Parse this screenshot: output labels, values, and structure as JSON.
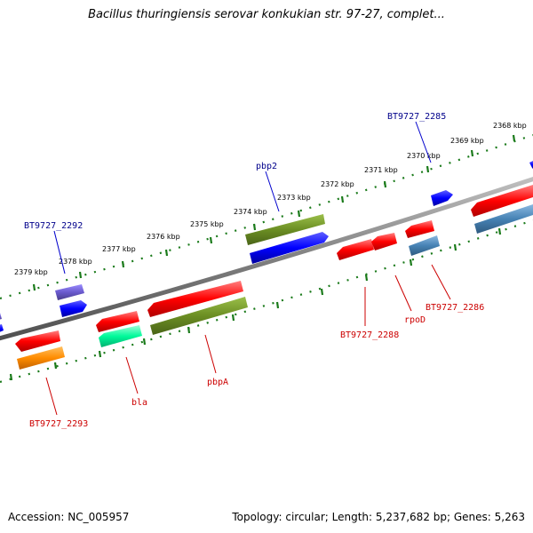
{
  "title": "Bacillus thuringiensis serovar konkukian str. 97-27, complet...",
  "footer": {
    "accession": "Accession: NC_005957",
    "topology": "Topology: circular; Length: 5,237,682 bp; Genes: 5,263"
  },
  "colors": {
    "backbone": "#808080",
    "dots": "#1a7a1a",
    "label_forward": "#00008b",
    "label_reverse": "#cc0000"
  },
  "scale_labels": [
    "2368 kbp",
    "2369 kbp",
    "2370 kbp",
    "2371 kbp",
    "2372 kbp",
    "2373 kbp",
    "2374 kbp",
    "2375 kbp",
    "2376 kbp",
    "2377 kbp",
    "2378 kbp",
    "2379 kbp"
  ],
  "genes_forward": [
    {
      "name": "BT9727_2292",
      "labeled": true,
      "color": "#6a5acd"
    },
    {
      "name": "pbp2",
      "labeled": true,
      "color": "#6b8e23"
    },
    {
      "name": "BT9727_2285",
      "labeled": true,
      "color": "#0000ff"
    }
  ],
  "genes_reverse": [
    {
      "name": "BT9727_2293",
      "labeled": true,
      "color": "#ff8c00"
    },
    {
      "name": "bla",
      "labeled": true,
      "color": "#00fa9a"
    },
    {
      "name": "pbpA",
      "labeled": true,
      "color": "#6b8e23"
    },
    {
      "name": "BT9727_2288",
      "labeled": true,
      "color": "#ff0000"
    },
    {
      "name": "rpoD",
      "labeled": true,
      "color": "#ff0000"
    },
    {
      "name": "BT9727_2286",
      "labeled": true,
      "color": "#4682b4"
    }
  ]
}
